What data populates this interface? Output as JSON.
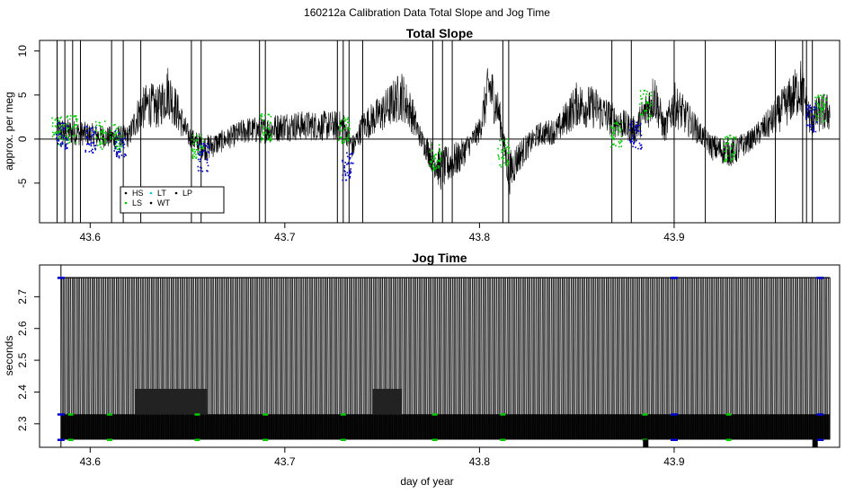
{
  "figure": {
    "suptitle": "160212a   Calibration Data Total Slope and Jog Time",
    "xlabel": "day of year"
  },
  "chart_data": [
    {
      "type": "line",
      "title": "Total Slope",
      "xlabel": "",
      "ylabel": "approx. per meg",
      "xlim": [
        43.574,
        43.985
      ],
      "ylim": [
        -9.5,
        11.2
      ],
      "xticks": [
        43.6,
        43.7,
        43.8,
        43.9
      ],
      "yticks": [
        -5,
        0,
        5,
        10
      ],
      "zero_line": true,
      "grid": false,
      "legend": {
        "placement": "bottom-left",
        "entries": [
          {
            "label": "HS",
            "color": "#000000"
          },
          {
            "label": "LT",
            "color": "#00cccc"
          },
          {
            "label": "LP",
            "color": "#000000"
          },
          {
            "label": "LS",
            "color": "#00cc00"
          },
          {
            "label": "WT",
            "color": "#000000"
          }
        ]
      },
      "series": [
        {
          "color": "#000000",
          "x": [
            43.583,
            43.59,
            43.6,
            43.61,
            43.62,
            43.625,
            43.63,
            43.635,
            43.64,
            43.645,
            43.65,
            43.655,
            43.66,
            43.67,
            43.68,
            43.69,
            43.7,
            43.71,
            43.72,
            43.73,
            43.735,
            43.74,
            43.75,
            43.76,
            43.765,
            43.77,
            43.78,
            43.79,
            43.8,
            43.805,
            43.81,
            43.815,
            43.82,
            43.83,
            43.84,
            43.85,
            43.86,
            43.87,
            43.88,
            43.885,
            43.89,
            43.895,
            43.9,
            43.91,
            43.92,
            43.93,
            43.94,
            43.95,
            43.96,
            43.965,
            43.97,
            43.975,
            43.98
          ],
          "y": [
            1.0,
            0.8,
            0.5,
            0.2,
            0.3,
            3.0,
            4.0,
            3.5,
            5.5,
            3.0,
            0.5,
            -0.5,
            -1.0,
            0.0,
            1.0,
            1.0,
            1.5,
            1.5,
            1.5,
            1.5,
            -1.0,
            1.5,
            3.0,
            5.0,
            3.0,
            0.0,
            -3.5,
            -2.0,
            1.0,
            6.0,
            3.0,
            -4.0,
            -2.0,
            0.5,
            1.0,
            4.0,
            3.5,
            2.0,
            1.0,
            3.0,
            5.0,
            1.0,
            4.0,
            1.5,
            -1.0,
            -1.5,
            0.0,
            2.0,
            4.5,
            6.0,
            2.0,
            3.0,
            3.0
          ]
        },
        {
          "color": "#00cc00",
          "x": [
            43.583,
            43.59,
            43.605,
            43.613,
            43.655,
            43.69,
            43.73,
            43.777,
            43.812,
            43.87,
            43.885,
            43.928,
            43.975
          ],
          "y": [
            1.0,
            1.2,
            0.5,
            0.3,
            -1.0,
            1.5,
            1.0,
            -2.0,
            -1.5,
            0.5,
            4.0,
            -1.0,
            3.5
          ]
        },
        {
          "color": "#0000cc",
          "x": [
            43.585,
            43.6,
            43.615,
            43.658,
            43.732,
            43.88,
            43.97
          ],
          "y": [
            0.5,
            0.0,
            -0.5,
            -2.0,
            -3.0,
            0.5,
            2.5
          ]
        }
      ],
      "spikes_x": [
        43.583,
        43.587,
        43.591,
        43.595,
        43.611,
        43.617,
        43.626,
        43.652,
        43.657,
        43.687,
        43.69,
        43.727,
        43.73,
        43.733,
        43.74,
        43.776,
        43.781,
        43.786,
        43.812,
        43.815,
        43.868,
        43.878,
        43.9,
        43.916,
        43.952,
        43.966,
        43.968,
        43.971
      ]
    },
    {
      "type": "line",
      "title": "Jog Time",
      "xlabel": "day of year",
      "ylabel": "seconds",
      "xlim": [
        43.574,
        43.985
      ],
      "ylim": [
        2.226,
        2.8
      ],
      "xticks": [
        43.6,
        43.7,
        43.8,
        43.9
      ],
      "yticks": [
        2.3,
        2.4,
        2.5,
        2.6,
        2.7
      ],
      "grid": false,
      "levels": [
        2.25,
        2.33,
        2.41,
        2.76
      ],
      "series": [
        {
          "color": "#000000",
          "x": [
            43.585,
            43.98
          ],
          "y": [
            2.25,
            2.76
          ]
        },
        {
          "color": "#00cc00",
          "x": [
            43.59,
            43.61,
            43.655,
            43.69,
            43.73,
            43.777,
            43.812,
            43.885,
            43.928
          ],
          "y": [
            2.25,
            2.25,
            2.25,
            2.25,
            2.25,
            2.25,
            2.25,
            2.25,
            2.25
          ]
        },
        {
          "color": "#0000cc",
          "x": [
            43.585,
            43.9,
            43.975
          ],
          "y": [
            2.33,
            2.33,
            2.33
          ]
        }
      ]
    }
  ]
}
